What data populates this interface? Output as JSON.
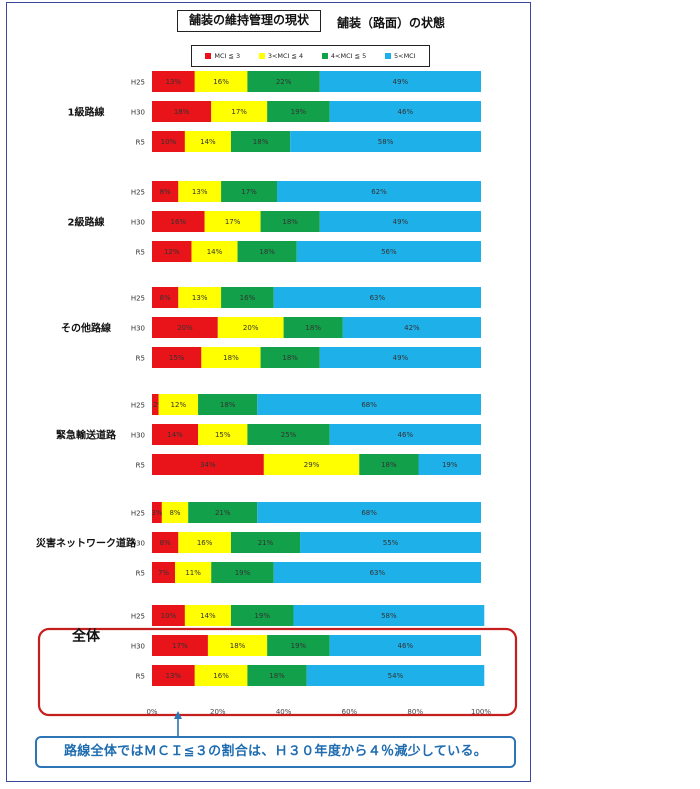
{
  "title": "舗装の維持管理の現状",
  "subtitle": "舗装（路面）の状態",
  "legend": [
    {
      "label": "MCI ≦ 3",
      "color": "#e8141a"
    },
    {
      "label": "3<MCI ≦ 4",
      "color": "#ffff00"
    },
    {
      "label": "4<MCI ≦ 5",
      "color": "#12a04a"
    },
    {
      "label": "5<MCI",
      "color": "#1eb0e8"
    }
  ],
  "callout": "路線全体ではＭＣＩ≦３の割合は、Ｈ３０年度から４％減少している。",
  "chart_data": {
    "type": "bar",
    "orientation": "horizontal",
    "stacked": true,
    "percent": true,
    "xlim": [
      0,
      100
    ],
    "xticks": [
      "0%",
      "20%",
      "40%",
      "60%",
      "80%",
      "100%"
    ],
    "series": [
      {
        "name": "MCI ≦ 3",
        "color": "#e8141a"
      },
      {
        "name": "3<MCI ≦ 4",
        "color": "#ffff00"
      },
      {
        "name": "4<MCI ≦ 5",
        "color": "#12a04a"
      },
      {
        "name": "5<MCI",
        "color": "#1eb0e8"
      }
    ],
    "groups": [
      {
        "name": "1級路線",
        "bars": [
          {
            "label": "H25",
            "values": [
              13,
              16,
              22,
              49
            ],
            "labels": [
              "13%",
              "16%",
              "22%",
              "49%"
            ]
          },
          {
            "label": "H30",
            "values": [
              18,
              17,
              19,
              46
            ],
            "labels": [
              "18%",
              "17%",
              "19%",
              "46%"
            ]
          },
          {
            "label": "R5",
            "values": [
              10,
              14,
              18,
              58
            ],
            "labels": [
              "10%",
              "14%",
              "18%",
              "58%"
            ]
          }
        ]
      },
      {
        "name": "2級路線",
        "bars": [
          {
            "label": "H25",
            "values": [
              8,
              13,
              17,
              62
            ],
            "labels": [
              "8%",
              "13%",
              "17%",
              "62%"
            ]
          },
          {
            "label": "H30",
            "values": [
              16,
              17,
              18,
              49
            ],
            "labels": [
              "16%",
              "17%",
              "18%",
              "49%"
            ]
          },
          {
            "label": "R5",
            "values": [
              12,
              14,
              18,
              56
            ],
            "labels": [
              "12%",
              "14%",
              "18%",
              "56%"
            ]
          }
        ]
      },
      {
        "name": "その他路線",
        "bars": [
          {
            "label": "H25",
            "values": [
              8,
              13,
              16,
              63
            ],
            "labels": [
              "8%",
              "13%",
              "16%",
              "63%"
            ]
          },
          {
            "label": "H30",
            "values": [
              20,
              20,
              18,
              42
            ],
            "labels": [
              "20%",
              "20%",
              "18%",
              "42%"
            ]
          },
          {
            "label": "R5",
            "values": [
              15,
              18,
              18,
              49
            ],
            "labels": [
              "15%",
              "18%",
              "18%",
              "49%"
            ]
          }
        ]
      },
      {
        "name": "緊急輸送道路",
        "bars": [
          {
            "label": "H25",
            "values": [
              2,
              12,
              18,
              68
            ],
            "labels": [
              "2%",
              "12%",
              "18%",
              "68%"
            ]
          },
          {
            "label": "H30",
            "values": [
              14,
              15,
              25,
              46
            ],
            "labels": [
              "14%",
              "15%",
              "25%",
              "46%"
            ]
          },
          {
            "label": "R5",
            "values": [
              34,
              29,
              18,
              19
            ],
            "labels": [
              "34%",
              "29%",
              "18%",
              "19%"
            ]
          }
        ]
      },
      {
        "name": "災害ネットワーク道路",
        "bars": [
          {
            "label": "H25",
            "values": [
              3,
              8,
              21,
              68
            ],
            "labels": [
              "3%",
              "8%",
              "21%",
              "68%"
            ]
          },
          {
            "label": "H30",
            "values": [
              8,
              16,
              21,
              55
            ],
            "labels": [
              "8%",
              "16%",
              "21%",
              "55%"
            ]
          },
          {
            "label": "R5",
            "values": [
              7,
              11,
              19,
              63
            ],
            "labels": [
              "7%",
              "11%",
              "19%",
              "63%"
            ]
          }
        ]
      },
      {
        "name": "全体",
        "highlight": true,
        "bars": [
          {
            "label": "H25",
            "values": [
              10,
              14,
              19,
              58
            ],
            "labels": [
              "10%",
              "14%",
              "19%",
              "58%"
            ]
          },
          {
            "label": "H30",
            "values": [
              17,
              18,
              19,
              46
            ],
            "labels": [
              "17%",
              "18%",
              "19%",
              "46%"
            ]
          },
          {
            "label": "R5",
            "values": [
              13,
              16,
              18,
              54
            ],
            "labels": [
              "13%",
              "16%",
              "18%",
              "54%"
            ]
          }
        ]
      }
    ]
  }
}
